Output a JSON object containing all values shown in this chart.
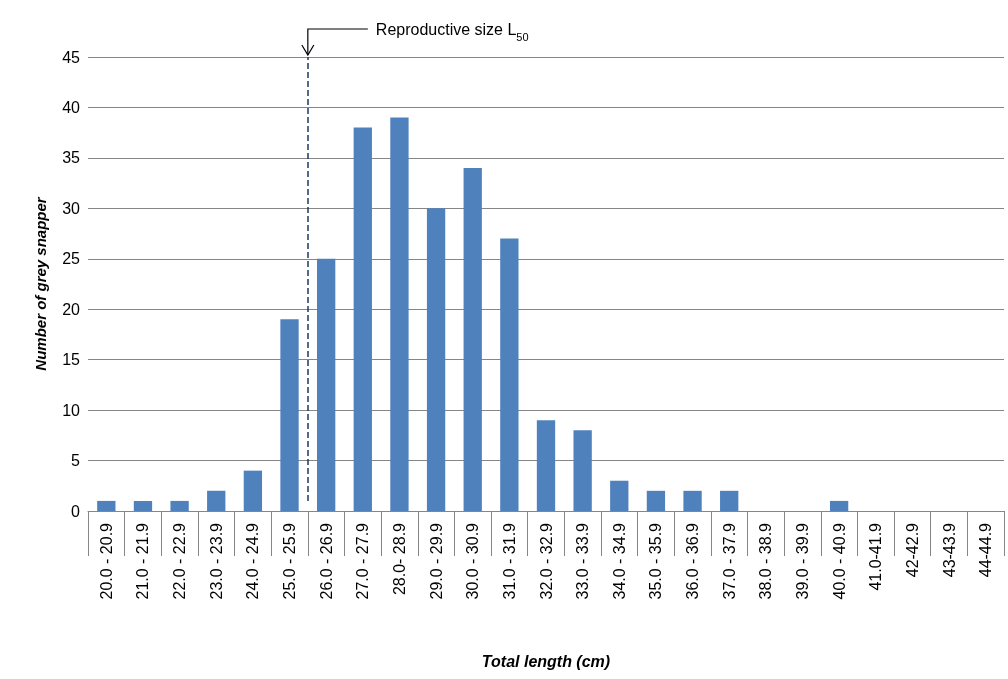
{
  "chart_data": {
    "type": "bar",
    "categories": [
      "20.0 - 20.9",
      "21.0 - 21.9",
      "22.0 - 22.9",
      "23.0 - 23.9",
      "24.0 - 24.9",
      "25.0 - 25.9",
      "26.0 - 26.9",
      "27.0 - 27.9",
      "28.0- 28.9",
      "29.0 - 29.9",
      "30.0 - 30.9",
      "31.0 - 31.9",
      "32.0 - 32.9",
      "33.0 - 33.9",
      "34.0 - 34.9",
      "35.0 - 35.9",
      "36.0 - 36.9",
      "37.0 - 37.9",
      "38.0 - 38.9",
      "39.0 - 39.9",
      "40.0 - 40.9",
      "41.0-41.9",
      "42-42.9",
      "43-43.9",
      "44-44.9"
    ],
    "values": [
      1,
      1,
      1,
      2,
      4,
      19,
      25,
      38,
      39,
      30,
      34,
      27,
      9,
      8,
      3,
      2,
      2,
      2,
      0,
      0,
      1,
      0,
      0,
      0,
      0
    ],
    "color": "#4f81bd",
    "xlabel": "Total length (cm)",
    "ylabel": "Number of grey snapper",
    "ylim": [
      0,
      45
    ],
    "yticks": [
      0,
      5,
      10,
      15,
      20,
      25,
      30,
      35,
      40,
      45
    ],
    "grid": "y",
    "ref_lines": [
      {
        "axis": "x",
        "value": "26.0 - 26.9",
        "label": "Reproductive size L$_{50}$",
        "color": "#1f3864",
        "line_style": "dashed"
      }
    ]
  }
}
